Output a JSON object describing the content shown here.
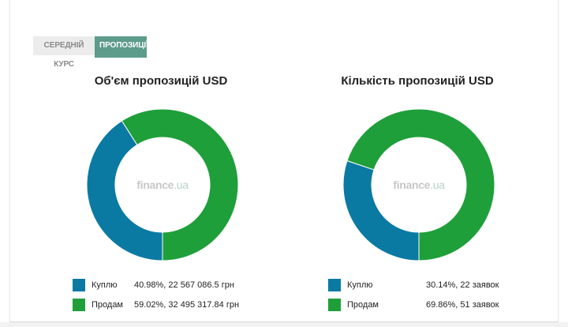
{
  "tabs": [
    {
      "label": "Середній курс",
      "active": false
    },
    {
      "label": "Пропозиції",
      "active": true
    }
  ],
  "watermark": {
    "brand": "finance",
    "tld": ".ua"
  },
  "colors": {
    "buy": "#0a7aa3",
    "sell": "#1f9f3a"
  },
  "chart_data": [
    {
      "type": "pie",
      "title": "Об'єм пропозицій USD",
      "categories": [
        "Куплю",
        "Продам"
      ],
      "values": [
        40.98,
        59.02
      ],
      "value_labels": [
        "40.98%, 22 567 086.5 грн",
        "59.02%, 32 495 317.84 грн"
      ],
      "donut": true,
      "legend": "bottom"
    },
    {
      "type": "pie",
      "title": "Кількість пропозицій USD",
      "categories": [
        "Куплю",
        "Продам"
      ],
      "values": [
        30.14,
        69.86
      ],
      "value_labels": [
        "30.14%, 22 заявок",
        "69.86%, 51 заявок"
      ],
      "donut": true,
      "legend": "bottom"
    }
  ]
}
